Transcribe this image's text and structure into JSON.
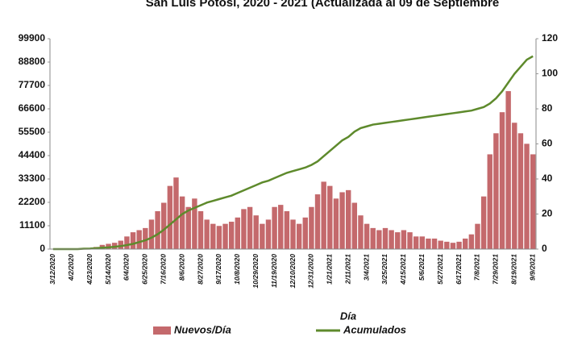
{
  "chart_data": {
    "type": "bar",
    "title": "San Luis Potosí, 2020 - 2021 (Actualizada al 09 de Septiembre",
    "x_label": "Día",
    "categories": [
      "3/12/2020",
      null,
      null,
      "4/2/2020",
      null,
      null,
      "4/23/2020",
      null,
      null,
      "5/14/2020",
      null,
      null,
      "6/4/2020",
      null,
      null,
      "6/25/2020",
      null,
      null,
      "7/16/2020",
      null,
      null,
      "8/6/2020",
      null,
      null,
      "8/27/2020",
      null,
      null,
      "9/17/2020",
      null,
      null,
      "10/8/2020",
      null,
      null,
      "10/29/2020",
      null,
      null,
      "11/19/2020",
      null,
      null,
      "12/10/2020",
      null,
      null,
      "12/31/2020",
      null,
      null,
      "1/21/2021",
      null,
      null,
      "2/11/2021",
      null,
      null,
      "3/4/2021",
      null,
      null,
      "3/25/2021",
      null,
      null,
      "4/15/2021",
      null,
      null,
      "5/6/2021",
      null,
      null,
      "5/27/2021",
      null,
      null,
      "6/17/2021",
      null,
      null,
      "7/8/2021",
      null,
      null,
      "7/29/2021",
      null,
      null,
      "8/19/2021",
      null,
      null,
      "9/9/2021"
    ],
    "series": [
      {
        "name": "Nuevos/Día",
        "type": "bar",
        "color": "#c4696c",
        "values": [
          0,
          0,
          0,
          0,
          0,
          200,
          500,
          1000,
          2000,
          2500,
          3000,
          4000,
          6000,
          8000,
          9000,
          10000,
          14000,
          18000,
          22000,
          30000,
          34000,
          25000,
          20000,
          24000,
          18000,
          14000,
          12000,
          11000,
          12000,
          13000,
          15000,
          19000,
          20000,
          16000,
          12000,
          14000,
          20000,
          21000,
          18000,
          14000,
          12000,
          15000,
          20000,
          26000,
          32000,
          30000,
          24000,
          27000,
          28000,
          22000,
          16000,
          12000,
          10000,
          9000,
          10000,
          9000,
          8000,
          9000,
          8000,
          6000,
          6000,
          5000,
          5000,
          4000,
          3500,
          3000,
          3500,
          5000,
          7000,
          12000,
          25000,
          45000,
          55000,
          65000,
          75000,
          60000,
          55000,
          50000,
          45000
        ]
      },
      {
        "name": "Acumulados",
        "type": "line",
        "color": "#5e8a2c",
        "axis": "y2",
        "values": [
          0,
          0,
          0,
          0,
          0,
          0.2,
          0.3,
          0.5,
          0.8,
          1,
          1.3,
          1.7,
          2.3,
          3,
          4,
          5,
          6.5,
          8.5,
          11,
          14,
          17,
          20,
          22,
          23.5,
          25,
          26.5,
          27.5,
          28.5,
          29.5,
          30.5,
          32,
          33.5,
          35,
          36.5,
          38,
          39,
          40.5,
          42,
          43.5,
          44.5,
          45.5,
          46.5,
          48,
          50,
          53,
          56,
          59,
          62,
          64,
          67,
          69,
          70,
          71,
          71.5,
          72,
          72.5,
          73,
          73.5,
          74,
          74.5,
          75,
          75.5,
          76,
          76.5,
          77,
          77.5,
          78,
          78.5,
          79,
          80,
          81,
          83,
          86,
          90,
          95,
          100,
          104,
          108,
          110
        ]
      }
    ],
    "ylim": [
      0,
      99900
    ],
    "yticks": [
      0,
      11100,
      22200,
      33300,
      44400,
      55500,
      66600,
      77700,
      88800,
      99900
    ],
    "y2lim": [
      0,
      120
    ],
    "y2ticks": [
      0,
      20,
      40,
      60,
      80,
      100,
      120
    ],
    "grid": false,
    "legend": "bottom"
  }
}
